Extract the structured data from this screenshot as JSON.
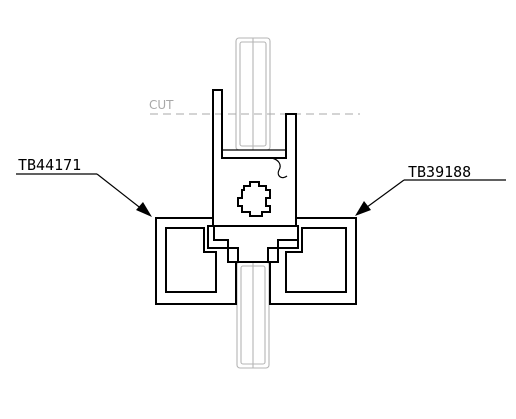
{
  "labels": {
    "left_part": "TB44171",
    "right_part": "TB39188",
    "cut": "CUT"
  },
  "colors": {
    "ink": "#000000",
    "ghost": "#b5b5b5",
    "cut_line": "#a8a8a8",
    "background": "#ffffff"
  }
}
